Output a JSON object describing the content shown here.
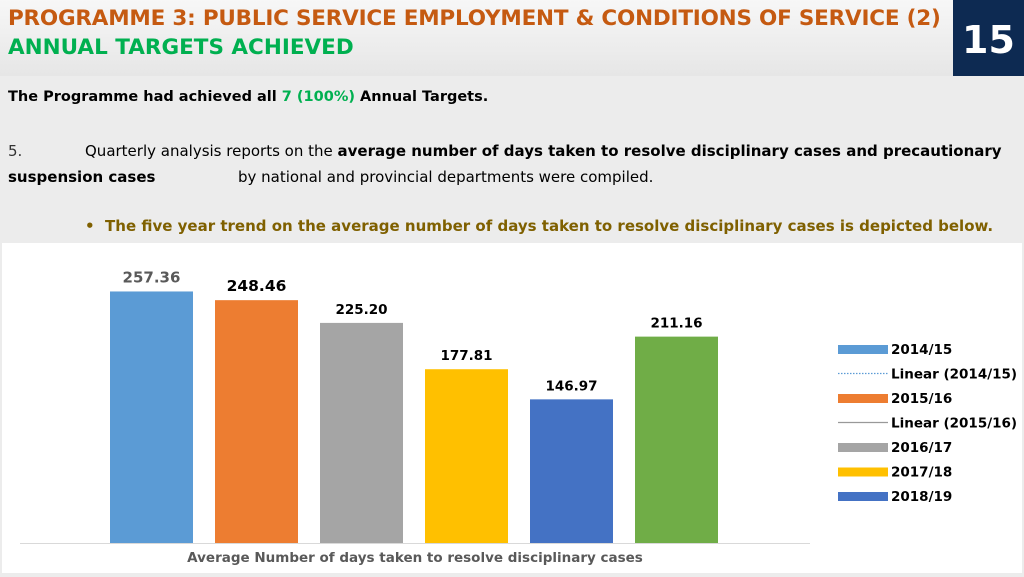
{
  "header": {
    "title_line1": "PROGRAMME 3: PUBLIC SERVICE EMPLOYMENT & CONDITIONS OF SERVICE (2)",
    "title_line2": "ANNUAL TARGETS ACHIEVED",
    "page_number": "15"
  },
  "body": {
    "line1_pre": "The Programme had achieved all ",
    "line1_highlight": "7 (100%)",
    "line1_post": " Annual Targets.",
    "item_number": "5.",
    "para_text1": "Quarterly analysis reports on the ",
    "para_bold": "average number of days taken to resolve disciplinary cases and precautionary",
    "para_bold2": "suspension  cases",
    "para_text2": "by national and provincial departments were compiled.",
    "bullet_text": "The five year trend on the average number of days taken to resolve disciplinary cases is depicted below."
  },
  "colors": {
    "title_orange": "#c55a11",
    "title_green": "#00b050",
    "page_box": "#0d2a52",
    "bullet_olive": "#7f6000"
  },
  "chart_data": {
    "type": "bar",
    "xlabel": "Average Number of days taken to resolve disciplinary cases",
    "ylim": [
      0,
      265
    ],
    "grid": false,
    "legend_position": "right",
    "series": [
      {
        "name": "2014/15",
        "value": 257.36,
        "label": "257.36",
        "color": "#5b9bd5"
      },
      {
        "name": "2015/16",
        "value": 248.46,
        "label": "248.46",
        "color": "#ed7d31"
      },
      {
        "name": "2016/17",
        "value": 225.2,
        "label": "225.20",
        "color": "#a5a5a5"
      },
      {
        "name": "2017/18",
        "value": 177.81,
        "label": "177.81",
        "color": "#ffc000"
      },
      {
        "name": "2018/19",
        "value": 146.97,
        "label": "146.97",
        "color": "#4472c4"
      },
      {
        "name": "",
        "value": 211.16,
        "label": "211.16",
        "color": "#70ad47"
      }
    ],
    "legend": [
      {
        "label": "2014/15",
        "kind": "bar",
        "color": "#5b9bd5"
      },
      {
        "label": "Linear (2014/15)",
        "kind": "dotted-line",
        "color": "#5b9bd5"
      },
      {
        "label": "2015/16",
        "kind": "bar",
        "color": "#ed7d31"
      },
      {
        "label": "Linear (2015/16)",
        "kind": "line",
        "color": "#999999"
      },
      {
        "label": "2016/17",
        "kind": "bar",
        "color": "#a5a5a5"
      },
      {
        "label": "2017/18",
        "kind": "bar",
        "color": "#ffc000"
      },
      {
        "label": "2018/19",
        "kind": "bar",
        "color": "#4472c4"
      }
    ]
  }
}
